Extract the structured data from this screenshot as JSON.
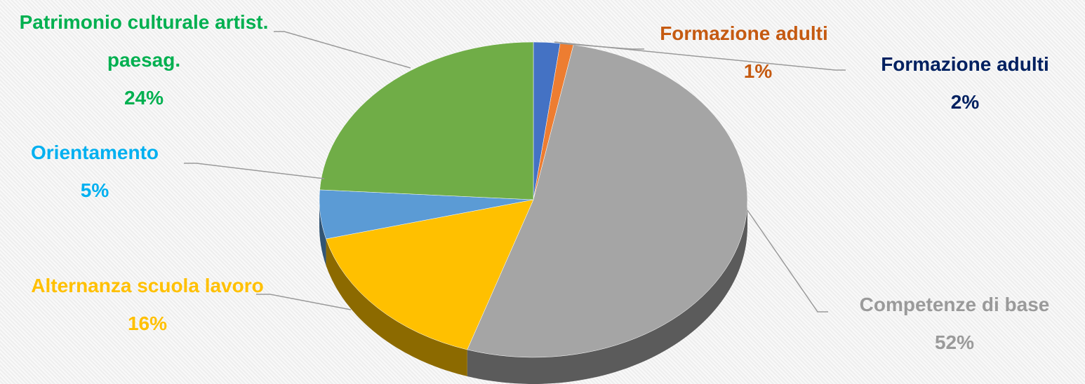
{
  "chart_data": {
    "type": "pie",
    "categories": [
      "Formazione adulti",
      "Formazione adulti",
      "Competenze di base",
      "Alternanza scuola lavoro",
      "Orientamento",
      "Patrimonio culturale artist. paesag."
    ],
    "values": [
      2,
      1,
      52,
      16,
      5,
      24
    ],
    "value_labels": [
      "2%",
      "1%",
      "52%",
      "16%",
      "5%",
      "24%"
    ],
    "colors": [
      "#4472c4",
      "#ed7d31",
      "#a5a5a5",
      "#ffc000",
      "#5b9bd5",
      "#70ad47"
    ],
    "label_colors": [
      "#002060",
      "#c55a11",
      "#9a9a9a",
      "#ffc000",
      "#00b0f0",
      "#00b050"
    ]
  }
}
